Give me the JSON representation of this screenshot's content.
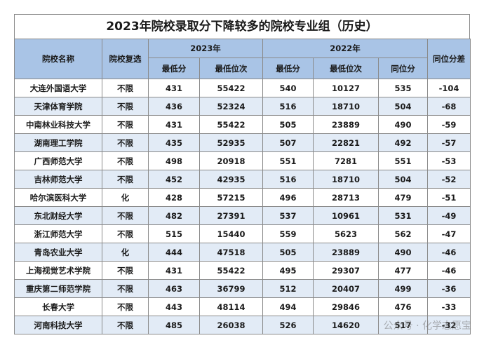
{
  "title": "2023年院校录取分下降较多的院校专业组（历史）",
  "header": {
    "school": "院校名称",
    "reselect": "院校复选",
    "y2023": "2023年",
    "y2022": "2022年",
    "diff": "同位分差",
    "min_score_2023": "最低分",
    "min_rank_2023": "最低位次",
    "min_score_2022": "最低分",
    "min_rank_2022": "最低位次",
    "same_rank_score_2022": "同位分"
  },
  "rows": [
    {
      "school": "大连外国语大学",
      "reselect": "不限",
      "s23": "431",
      "r23": "55422",
      "s22": "540",
      "r22": "10127",
      "t22": "535",
      "diff": "-104"
    },
    {
      "school": "天津体育学院",
      "reselect": "不限",
      "s23": "436",
      "r23": "52324",
      "s22": "516",
      "r22": "18710",
      "t22": "504",
      "diff": "-68"
    },
    {
      "school": "中南林业科技大学",
      "reselect": "不限",
      "s23": "431",
      "r23": "55422",
      "s22": "505",
      "r22": "23889",
      "t22": "490",
      "diff": "-59"
    },
    {
      "school": "湖南理工学院",
      "reselect": "不限",
      "s23": "435",
      "r23": "52935",
      "s22": "507",
      "r22": "22821",
      "t22": "492",
      "diff": "-57"
    },
    {
      "school": "广西师范大学",
      "reselect": "不限",
      "s23": "498",
      "r23": "20918",
      "s22": "551",
      "r22": "7281",
      "t22": "551",
      "diff": "-53"
    },
    {
      "school": "吉林师范大学",
      "reselect": "不限",
      "s23": "452",
      "r23": "42935",
      "s22": "516",
      "r22": "18710",
      "t22": "504",
      "diff": "-52"
    },
    {
      "school": "哈尔滨医科大学",
      "reselect": "化",
      "s23": "428",
      "r23": "57215",
      "s22": "496",
      "r22": "28713",
      "t22": "479",
      "diff": "-51"
    },
    {
      "school": "东北财经大学",
      "reselect": "不限",
      "s23": "482",
      "r23": "27391",
      "s22": "537",
      "r22": "10961",
      "t22": "531",
      "diff": "-49"
    },
    {
      "school": "浙江师范大学",
      "reselect": "不限",
      "s23": "515",
      "r23": "15440",
      "s22": "559",
      "r22": "5623",
      "t22": "562",
      "diff": "-47"
    },
    {
      "school": "青岛农业大学",
      "reselect": "化",
      "s23": "444",
      "r23": "47518",
      "s22": "505",
      "r22": "23889",
      "t22": "490",
      "diff": "-46"
    },
    {
      "school": "上海视觉艺术学院",
      "reselect": "不限",
      "s23": "431",
      "r23": "55422",
      "s22": "495",
      "r22": "29307",
      "t22": "477",
      "diff": "-46"
    },
    {
      "school": "重庆第二师范学院",
      "reselect": "不限",
      "s23": "463",
      "r23": "36799",
      "s22": "512",
      "r22": "20407",
      "t22": "499",
      "diff": "-36"
    },
    {
      "school": "长春大学",
      "reselect": "不限",
      "s23": "443",
      "r23": "48114",
      "s22": "494",
      "r22": "29846",
      "t22": "476",
      "diff": "-33"
    },
    {
      "school": "河南科技大学",
      "reselect": "不限",
      "s23": "485",
      "r23": "26038",
      "s22": "526",
      "r22": "14620",
      "t22": "517",
      "diff": "-32"
    }
  ],
  "watermark": "公众号 · 化学志愿宝"
}
